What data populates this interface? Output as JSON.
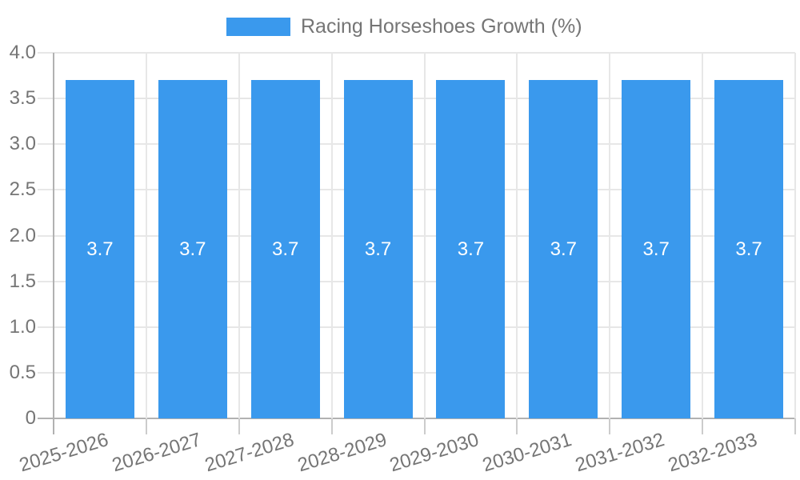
{
  "legend": {
    "label": "Racing Horseshoes Growth (%)"
  },
  "colors": {
    "bar": "#3a99ed",
    "grid": "#e7e7e7",
    "axis": "#b1b1b1",
    "minor_tick": "#cccccc",
    "axis_text": "#757575",
    "bar_label_text": "#ffffff",
    "background": "#ffffff"
  },
  "chart_data": {
    "type": "bar",
    "title": "Racing Horseshoes Growth (%)",
    "legend_position": "top",
    "categories": [
      "2025-2026",
      "2026-2027",
      "2027-2028",
      "2028-2029",
      "2029-2030",
      "2030-2031",
      "2031-2032",
      "2032-2033"
    ],
    "series": [
      {
        "name": "Racing Horseshoes Growth (%)",
        "values": [
          3.7,
          3.7,
          3.7,
          3.7,
          3.7,
          3.7,
          3.7,
          3.7
        ]
      }
    ],
    "bar_value_labels": [
      "3.7",
      "3.7",
      "3.7",
      "3.7",
      "3.7",
      "3.7",
      "3.7",
      "3.7"
    ],
    "xlabel": "",
    "ylabel": "",
    "ylim": [
      0,
      4
    ],
    "yticks": [
      0,
      0.5,
      1,
      1.5,
      2,
      2.5,
      3,
      3.5,
      4
    ],
    "ytick_labels": [
      "0",
      "0.5",
      "1.0",
      "1.5",
      "2.0",
      "2.5",
      "3.0",
      "3.5",
      "4.0"
    ],
    "grid": true,
    "x_label_rotation_deg": -17
  }
}
